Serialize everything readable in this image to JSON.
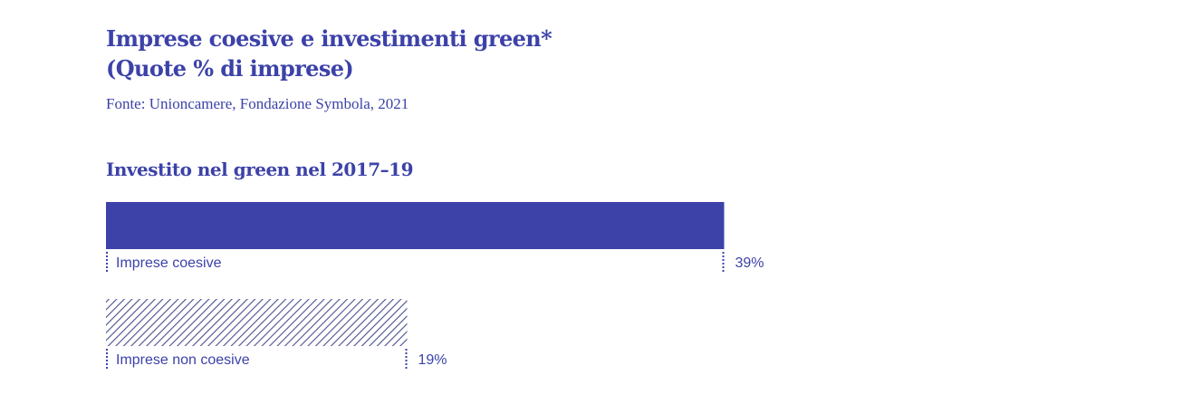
{
  "title_line1": "Imprese coesive e investimenti green*",
  "title_line2": "(Quote % di imprese)",
  "source": "Fonte: Unioncamere, Fondazione Symbola, 2021",
  "chart_data": {
    "type": "bar",
    "orientation": "horizontal",
    "title": "Investito nel green nel 2017–19",
    "categories": [
      "Imprese coesive",
      "Imprese non coesive"
    ],
    "values": [
      39,
      19
    ],
    "value_labels": [
      "39%",
      "19%"
    ],
    "unit": "%",
    "styles": [
      "solid",
      "hatched"
    ],
    "color": "#3c42a8",
    "xlim": [
      0,
      100
    ],
    "grid": false,
    "legend": "none"
  }
}
